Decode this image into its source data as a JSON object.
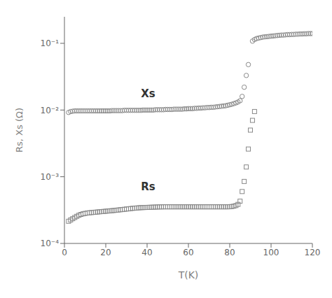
{
  "chart_data": {
    "type": "scatter",
    "xlabel": "T(K)",
    "ylabel": "Rs, Xs (Ω)",
    "log": "y",
    "grid": false,
    "xlim": [
      0,
      120
    ],
    "xticks": [
      0,
      20,
      40,
      60,
      80,
      100,
      120
    ],
    "ylim": [
      0.0001,
      0.25
    ],
    "yticks": [
      {
        "value": 0.0001,
        "label": "10⁻⁴"
      },
      {
        "value": 0.001,
        "label": "10⁻³"
      },
      {
        "value": 0.01,
        "label": "10⁻²"
      },
      {
        "value": 0.1,
        "label": "10⁻¹"
      }
    ],
    "series": [
      {
        "name": "Xs",
        "color": "#888888",
        "marker": "circle",
        "x": [
          2,
          3,
          4,
          5,
          6,
          7,
          8,
          9,
          10,
          11,
          12,
          13,
          14,
          15,
          16,
          17,
          18,
          19,
          20,
          21,
          22,
          23,
          24,
          25,
          26,
          27,
          28,
          29,
          30,
          31,
          32,
          33,
          34,
          35,
          36,
          37,
          38,
          39,
          40,
          41,
          42,
          43,
          44,
          45,
          46,
          47,
          48,
          49,
          50,
          51,
          52,
          53,
          54,
          55,
          56,
          57,
          58,
          59,
          60,
          61,
          62,
          63,
          64,
          65,
          66,
          67,
          68,
          69,
          70,
          71,
          72,
          73,
          74,
          75,
          76,
          77,
          78,
          79,
          80,
          81,
          82,
          83,
          84,
          85,
          86,
          87,
          88,
          89,
          91,
          92,
          93,
          94,
          95,
          96,
          97,
          98,
          99,
          100,
          101,
          102,
          103,
          104,
          105,
          106,
          107,
          108,
          109,
          110,
          111,
          112,
          113,
          114,
          115,
          116,
          117,
          118,
          119,
          120
        ],
        "values": [
          0.0092,
          0.0095,
          0.0096,
          0.0097,
          0.0097,
          0.0097,
          0.0097,
          0.0097,
          0.0097,
          0.0097,
          0.0097,
          0.0097,
          0.0097,
          0.0097,
          0.0097,
          0.0097,
          0.0097,
          0.0097,
          0.0097,
          0.0097,
          0.0097,
          0.0098,
          0.0098,
          0.0098,
          0.0098,
          0.0098,
          0.0098,
          0.0099,
          0.0099,
          0.0099,
          0.0099,
          0.0099,
          0.0099,
          0.0099,
          0.0099,
          0.0099,
          0.01,
          0.01,
          0.01,
          0.01,
          0.01,
          0.01,
          0.0101,
          0.0101,
          0.0101,
          0.0101,
          0.0101,
          0.0102,
          0.0102,
          0.0102,
          0.0102,
          0.0103,
          0.0103,
          0.0103,
          0.0103,
          0.0103,
          0.0104,
          0.0104,
          0.0105,
          0.0105,
          0.0105,
          0.0106,
          0.0106,
          0.0107,
          0.0107,
          0.0108,
          0.0108,
          0.0109,
          0.0109,
          0.011,
          0.011,
          0.0111,
          0.0112,
          0.0113,
          0.0114,
          0.0115,
          0.0116,
          0.0118,
          0.012,
          0.0122,
          0.0125,
          0.0128,
          0.0132,
          0.0138,
          0.016,
          0.022,
          0.033,
          0.048,
          0.108,
          0.114,
          0.118,
          0.12,
          0.122,
          0.124,
          0.125,
          0.126,
          0.127,
          0.128,
          0.129,
          0.13,
          0.131,
          0.132,
          0.133,
          0.133,
          0.134,
          0.135,
          0.135,
          0.136,
          0.136,
          0.137,
          0.137,
          0.138,
          0.138,
          0.139,
          0.139,
          0.14,
          0.14,
          0.14
        ]
      },
      {
        "name": "Rs",
        "color": "#888888",
        "marker": "square",
        "x": [
          2,
          3,
          4,
          5,
          6,
          7,
          8,
          9,
          10,
          11,
          12,
          13,
          14,
          15,
          16,
          17,
          18,
          19,
          20,
          21,
          22,
          23,
          24,
          25,
          26,
          27,
          28,
          29,
          30,
          31,
          32,
          33,
          34,
          35,
          36,
          37,
          38,
          39,
          40,
          41,
          42,
          43,
          44,
          45,
          46,
          47,
          48,
          49,
          50,
          51,
          52,
          53,
          54,
          55,
          56,
          57,
          58,
          59,
          60,
          61,
          62,
          63,
          64,
          65,
          66,
          67,
          68,
          69,
          70,
          71,
          72,
          73,
          74,
          75,
          76,
          77,
          78,
          79,
          80,
          81,
          82,
          83,
          84,
          85,
          86,
          87,
          88,
          89,
          90,
          91,
          92
        ],
        "values": [
          0.000215,
          0.000225,
          0.000235,
          0.000245,
          0.000255,
          0.000265,
          0.000272,
          0.000278,
          0.000282,
          0.000286,
          0.000288,
          0.00029,
          0.000292,
          0.000294,
          0.000296,
          0.000298,
          0.0003,
          0.000302,
          0.000304,
          0.000306,
          0.000308,
          0.00031,
          0.000312,
          0.000315,
          0.000317,
          0.00032,
          0.000322,
          0.000325,
          0.000328,
          0.00033,
          0.000333,
          0.000336,
          0.000338,
          0.00034,
          0.000342,
          0.000344,
          0.000345,
          0.000346,
          0.000347,
          0.000348,
          0.000349,
          0.00035,
          0.000351,
          0.000352,
          0.000353,
          0.000353,
          0.000354,
          0.000354,
          0.000354,
          0.000354,
          0.000354,
          0.000354,
          0.000354,
          0.000354,
          0.000354,
          0.000354,
          0.000354,
          0.000354,
          0.000354,
          0.000354,
          0.000354,
          0.000354,
          0.000354,
          0.000354,
          0.000354,
          0.000354,
          0.000354,
          0.000354,
          0.000354,
          0.000354,
          0.000354,
          0.000354,
          0.000354,
          0.000354,
          0.000354,
          0.000354,
          0.000354,
          0.000354,
          0.000355,
          0.000358,
          0.000362,
          0.00037,
          0.000385,
          0.00043,
          0.0006,
          0.00085,
          0.0014,
          0.0026,
          0.005,
          0.007,
          0.0095
        ]
      }
    ],
    "annotations": [
      {
        "text": "Xs",
        "x": 37,
        "y": 0.0145
      },
      {
        "text": "Rs",
        "x": 37,
        "y": 0.00058
      }
    ]
  }
}
